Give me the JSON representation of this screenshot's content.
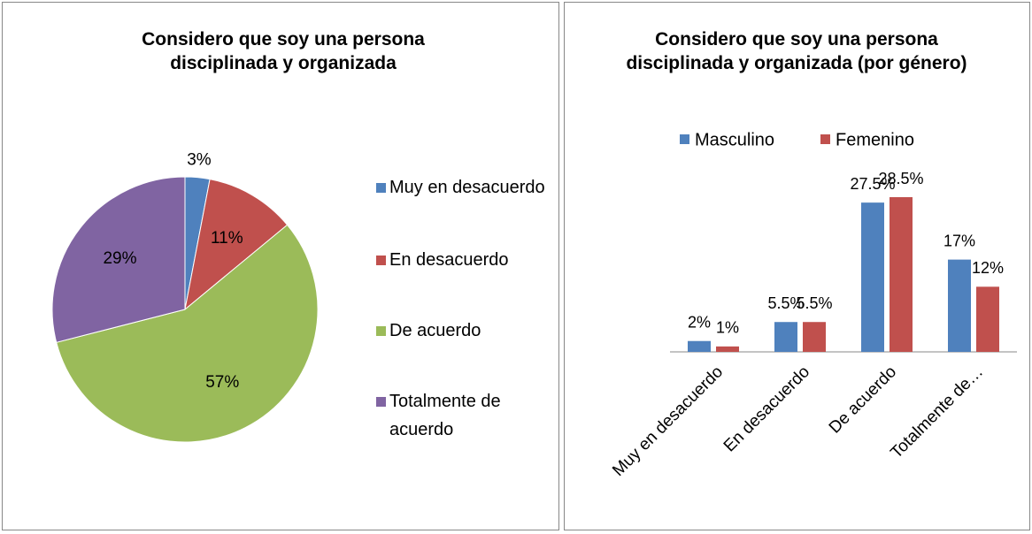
{
  "chart_data": [
    {
      "type": "pie",
      "title": "Considero que soy una persona disciplinada y organizada",
      "categories": [
        "Muy en desacuerdo",
        "En desacuerdo",
        "De acuerdo",
        "Totalmente de acuerdo"
      ],
      "values": [
        3,
        11,
        57,
        29
      ],
      "value_labels": [
        "3%",
        "11%",
        "57%",
        "29%"
      ],
      "colors": [
        "#4f81bd",
        "#c0504d",
        "#9bbb59",
        "#8064a2"
      ],
      "legend": "right"
    },
    {
      "type": "bar",
      "title": "Considero que soy una persona disciplinada y organizada (por género)",
      "categories": [
        "Muy en desacuerdo",
        "En desacuerdo",
        "De acuerdo",
        "Totalmente de…"
      ],
      "series": [
        {
          "name": "Masculino",
          "color": "#4f81bd",
          "values": [
            2,
            5.5,
            27.5,
            17
          ],
          "value_labels": [
            "2%",
            "5.5%",
            "27.5%",
            "17%"
          ]
        },
        {
          "name": "Femenino",
          "color": "#c0504d",
          "values": [
            1,
            5.5,
            28.5,
            12
          ],
          "value_labels": [
            "1%",
            "5.5%",
            "28.5%",
            "12%"
          ]
        }
      ],
      "legend": "top"
    }
  ]
}
